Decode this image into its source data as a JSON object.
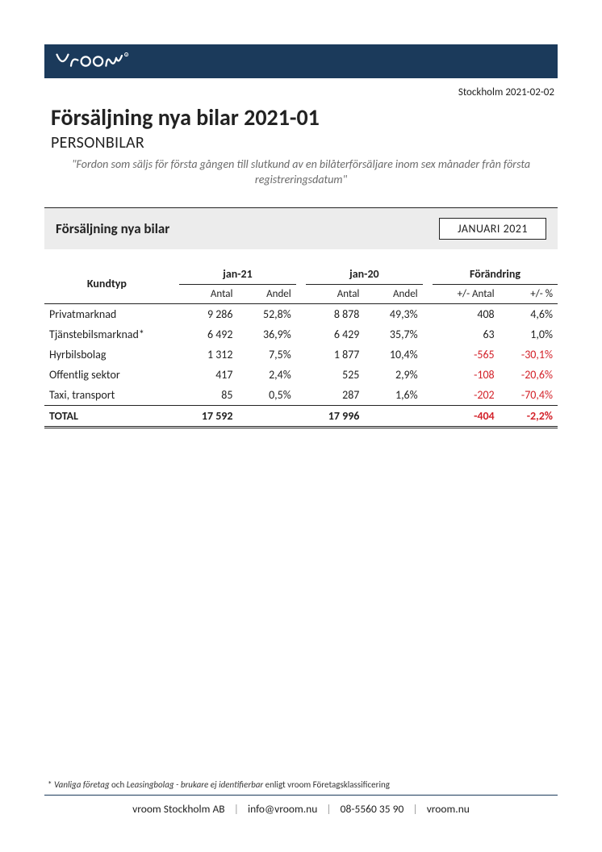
{
  "brand_color": "#1b3a5b",
  "location_date": "Stockholm 2021-02-02",
  "title": "Försäljning nya bilar 2021-01",
  "subtitle": "PERSONBILAR",
  "definition": "\"Fordon som säljs för första gången till slutkund av en bilåterförsäljare inom sex månader från första registreringsdatum\"",
  "section": {
    "title": "Försäljning nya bilar",
    "period": "JANUARI 2021"
  },
  "table": {
    "col_group_labels": {
      "kundtyp": "Kundtyp",
      "period_current": "jan-21",
      "period_prev": "jan-20",
      "change": "Förändring"
    },
    "sub_labels": {
      "antal": "Antal",
      "andel": "Andel",
      "chg_abs": "+/- Antal",
      "chg_pct": "+/- %"
    },
    "rows": [
      {
        "label": "Privatmarknad",
        "cur_antal": "9 286",
        "cur_andel": "52,8%",
        "prev_antal": "8 878",
        "prev_andel": "49,3%",
        "chg_abs": "408",
        "chg_pct": "4,6%",
        "neg": false
      },
      {
        "label": "Tjänstebilsmarknad*",
        "cur_antal": "6 492",
        "cur_andel": "36,9%",
        "prev_antal": "6 429",
        "prev_andel": "35,7%",
        "chg_abs": "63",
        "chg_pct": "1,0%",
        "neg": false
      },
      {
        "label": "Hyrbilsbolag",
        "cur_antal": "1 312",
        "cur_andel": "7,5%",
        "prev_antal": "1 877",
        "prev_andel": "10,4%",
        "chg_abs": "-565",
        "chg_pct": "-30,1%",
        "neg": true
      },
      {
        "label": "Offentlig sektor",
        "cur_antal": "417",
        "cur_andel": "2,4%",
        "prev_antal": "525",
        "prev_andel": "2,9%",
        "chg_abs": "-108",
        "chg_pct": "-20,6%",
        "neg": true
      },
      {
        "label": "Taxi, transport",
        "cur_antal": "85",
        "cur_andel": "0,5%",
        "prev_antal": "287",
        "prev_andel": "1,6%",
        "chg_abs": "-202",
        "chg_pct": "-70,4%",
        "neg": true
      }
    ],
    "total": {
      "label": "TOTAL",
      "cur_antal": "17 592",
      "prev_antal": "17 996",
      "chg_abs": "-404",
      "chg_pct": "-2,2%",
      "neg": true
    }
  },
  "footnote": {
    "prefix": "* ",
    "italic1": "Vanliga företag",
    "mid": "  och ",
    "italic2": "Leasingbolag - brukare ej identifierbar",
    "suffix": "  enligt vroom Företagsklassificering"
  },
  "footer": {
    "company": "vroom Stockholm AB",
    "email": "info@vroom.nu",
    "phone": "08-5560 35 90",
    "web": "vroom.nu"
  }
}
